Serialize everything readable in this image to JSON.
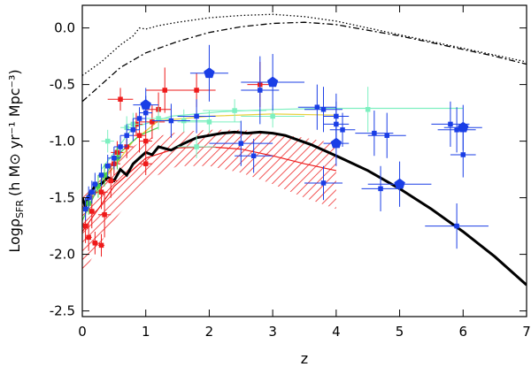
{
  "chart_data": {
    "type": "scatter",
    "title": "",
    "xlabel": "z",
    "ylabel": "LogρSFR (h M⊙ yr⁻¹ Mpc⁻³)",
    "ylabel_parts": {
      "prefix": "Logρ",
      "sub": "SFR",
      "units": "(h M⊙ yr⁻¹ Mpc⁻³)"
    },
    "xlim": [
      0,
      7
    ],
    "ylim": [
      -2.55,
      0.2
    ],
    "x_ticks": [
      0,
      1,
      2,
      3,
      4,
      5,
      6,
      7
    ],
    "x_tick_labels": [
      "0",
      "1",
      "2",
      "3",
      "4",
      "5",
      "6",
      "7"
    ],
    "y_ticks": [
      0.0,
      -0.5,
      -1.0,
      -1.5,
      -2.0,
      -2.5
    ],
    "y_tick_labels": [
      "0.0",
      "-0.5",
      "-1.0",
      "-1.5",
      "-2.0",
      "-2.5"
    ],
    "colors": {
      "blue": "#1a3ee6",
      "red": "#ee1a1a",
      "aqua": "#7df0c0",
      "yellow": "#e8d040",
      "green": "#4ad24a",
      "model": "#000000",
      "hatch": "#ee2a2a"
    },
    "series": [
      {
        "name": "model (solid)",
        "style": "solid",
        "x": [
          0,
          0.05,
          0.1,
          0.2,
          0.3,
          0.4,
          0.5,
          0.6,
          0.7,
          0.8,
          0.9,
          1.0,
          1.1,
          1.2,
          1.4,
          1.6,
          1.8,
          2.0,
          2.2,
          2.4,
          2.6,
          2.8,
          3.0,
          3.2,
          3.4,
          3.6,
          3.8,
          4.0,
          4.5,
          5.0,
          5.5,
          6.0,
          6.5,
          7.0
        ],
        "y": [
          -1.5,
          -1.58,
          -1.48,
          -1.4,
          -1.38,
          -1.32,
          -1.35,
          -1.25,
          -1.3,
          -1.2,
          -1.15,
          -1.1,
          -1.12,
          -1.05,
          -1.08,
          -1.02,
          -0.97,
          -0.95,
          -0.93,
          -0.92,
          -0.93,
          -0.92,
          -0.93,
          -0.95,
          -0.99,
          -1.03,
          -1.08,
          -1.13,
          -1.26,
          -1.42,
          -1.6,
          -1.8,
          -2.02,
          -2.27
        ]
      },
      {
        "name": "dotted",
        "style": "dotted",
        "x": [
          0,
          0.3,
          0.6,
          0.8,
          0.9,
          1.0,
          1.2,
          1.5,
          2.0,
          2.5,
          3.0,
          3.5,
          4.0,
          4.5,
          5.0,
          5.5,
          6.0,
          6.5,
          7.0
        ],
        "y": [
          -0.42,
          -0.3,
          -0.15,
          -0.07,
          0.0,
          -0.01,
          0.02,
          0.05,
          0.09,
          0.11,
          0.12,
          0.1,
          0.06,
          0.0,
          -0.06,
          -0.12,
          -0.18,
          -0.24,
          -0.3
        ]
      },
      {
        "name": "dash-dot",
        "style": "dashdot",
        "x": [
          0,
          0.3,
          0.6,
          1.0,
          1.5,
          2.0,
          2.5,
          3.0,
          3.5,
          4.0,
          4.5,
          5.0,
          5.5,
          6.0,
          6.5,
          7.0
        ],
        "y": [
          -0.65,
          -0.5,
          -0.35,
          -0.22,
          -0.12,
          -0.04,
          0.01,
          0.04,
          0.05,
          0.03,
          -0.02,
          -0.07,
          -0.13,
          -0.19,
          -0.25,
          -0.32
        ]
      },
      {
        "name": "red line",
        "style": "thin",
        "x": [
          0,
          0.5,
          1.0,
          1.5,
          2.0,
          2.5,
          3.0,
          3.5,
          4.0
        ],
        "y": [
          -1.8,
          -1.4,
          -1.15,
          -1.06,
          -1.05,
          -1.07,
          -1.13,
          -1.2,
          -1.26
        ]
      },
      {
        "name": "hatched band",
        "style": "band",
        "x": [
          0.0,
          0.5,
          1.0,
          1.5,
          2.0,
          2.5,
          3.0,
          3.5,
          4.0
        ],
        "upper": [
          -1.5,
          -1.15,
          -0.98,
          -0.92,
          -0.9,
          -0.9,
          -0.93,
          -0.97,
          -1.02
        ],
        "lower": [
          -2.18,
          -1.7,
          -1.35,
          -1.22,
          -1.22,
          -1.28,
          -1.38,
          -1.5,
          -1.6
        ]
      },
      {
        "name": "yellow line",
        "style": "thin",
        "x": [
          0,
          0.4,
          0.8,
          1.2,
          2.0,
          3.0,
          4.0
        ],
        "y": [
          -1.6,
          -1.3,
          -1.0,
          -0.82,
          -0.78,
          -0.76,
          -0.77
        ]
      },
      {
        "name": "aqua line",
        "style": "thin",
        "x": [
          0.3,
          0.8,
          1.4,
          2.2,
          3.0,
          3.8,
          4.5,
          5.2,
          6.0
        ],
        "y": [
          -1.25,
          -0.88,
          -0.78,
          -0.74,
          -0.72,
          -0.71,
          -0.71,
          -0.71,
          -0.71
        ]
      },
      {
        "name": "green line",
        "style": "thin",
        "x": [
          0,
          0.3,
          0.6,
          0.9,
          1.2
        ],
        "y": [
          -1.7,
          -1.35,
          -1.1,
          -0.95,
          -0.88
        ]
      }
    ],
    "points": [
      {
        "group": "red",
        "x": 0.05,
        "y": -1.75,
        "xerr": 0.05,
        "yerr": 0.15
      },
      {
        "group": "red",
        "x": 0.1,
        "y": -1.85,
        "xerr": 0.05,
        "yerr": 0.12
      },
      {
        "group": "red",
        "x": 0.15,
        "y": -1.62,
        "xerr": 0.05,
        "yerr": 0.15
      },
      {
        "group": "red",
        "x": 0.2,
        "y": -1.9,
        "xerr": 0.05,
        "yerr": 0.1
      },
      {
        "group": "red",
        "x": 0.3,
        "y": -1.92,
        "xerr": 0.05,
        "yerr": 0.1
      },
      {
        "group": "red",
        "x": 0.3,
        "y": -1.45,
        "xerr": 0.1,
        "yerr": 0.15
      },
      {
        "group": "red",
        "x": 0.35,
        "y": -1.65,
        "xerr": 0.1,
        "yerr": 0.2
      },
      {
        "group": "red",
        "x": 0.45,
        "y": -1.35,
        "xerr": 0.1,
        "yerr": 0.15
      },
      {
        "group": "red",
        "x": 0.55,
        "y": -1.1,
        "xerr": 0.1,
        "yerr": 0.1
      },
      {
        "group": "red",
        "x": 0.7,
        "y": -1.05,
        "xerr": 0.1,
        "yerr": 0.1
      },
      {
        "group": "red",
        "x": 0.85,
        "y": -0.85,
        "xerr": 0.1,
        "yerr": 0.1
      },
      {
        "group": "red",
        "x": 0.9,
        "y": -0.95,
        "xerr": 0.1,
        "yerr": 0.15
      },
      {
        "group": "red",
        "x": 1.0,
        "y": -1.2,
        "xerr": 0.1,
        "yerr": 0.1
      },
      {
        "group": "red",
        "x": 1.1,
        "y": -0.83,
        "xerr": 0.2,
        "yerr": 0.15
      },
      {
        "group": "red",
        "x": 1.2,
        "y": -0.72,
        "xerr": 0.2,
        "yerr": 0.15
      },
      {
        "group": "red",
        "x": 1.3,
        "y": -0.55,
        "xerr": 0.3,
        "yerr": 0.2
      },
      {
        "group": "red",
        "x": 0.6,
        "y": -0.63,
        "xerr": 0.2,
        "yerr": 0.1
      },
      {
        "group": "red",
        "x": 1.8,
        "y": -0.55,
        "xerr": 0.3,
        "yerr": 0.15
      },
      {
        "group": "red",
        "x": 2.8,
        "y": -0.5,
        "xerr": 0.2,
        "yerr": 0.2
      },
      {
        "group": "red",
        "x": 1.0,
        "y": -1.0,
        "xerr": 0.1,
        "yerr": 0.1
      },
      {
        "group": "red",
        "x": 0.5,
        "y": -1.2,
        "xerr": 0.1,
        "yerr": 0.1
      },
      {
        "group": "green",
        "x": 0.1,
        "y": -1.55,
        "xerr": 0.05,
        "yerr": 0.1
      },
      {
        "group": "green",
        "x": 0.25,
        "y": -1.4,
        "xerr": 0.05,
        "yerr": 0.1
      },
      {
        "group": "green",
        "x": 0.35,
        "y": -1.3,
        "xerr": 0.05,
        "yerr": 0.1
      },
      {
        "group": "green",
        "x": 0.55,
        "y": -1.15,
        "xerr": 0.05,
        "yerr": 0.1
      },
      {
        "group": "aqua",
        "x": 0.4,
        "y": -1.0,
        "xerr": 0.1,
        "yerr": 0.1
      },
      {
        "group": "aqua",
        "x": 0.7,
        "y": -0.88,
        "xerr": 0.1,
        "yerr": 0.1
      },
      {
        "group": "aqua",
        "x": 0.8,
        "y": -0.85,
        "xerr": 0.1,
        "yerr": 0.1
      },
      {
        "group": "aqua",
        "x": 1.2,
        "y": -0.8,
        "xerr": 0.2,
        "yerr": 0.1
      },
      {
        "group": "aqua",
        "x": 1.6,
        "y": -0.82,
        "xerr": 0.4,
        "yerr": 0.1
      },
      {
        "group": "aqua",
        "x": 2.0,
        "y": -0.83,
        "xerr": 0.5,
        "yerr": 0.1
      },
      {
        "group": "aqua",
        "x": 2.4,
        "y": -0.73,
        "xerr": 0.5,
        "yerr": 0.1
      },
      {
        "group": "aqua",
        "x": 3.0,
        "y": -0.78,
        "xerr": 0.5,
        "yerr": 0.1
      },
      {
        "group": "aqua",
        "x": 4.5,
        "y": -0.72,
        "xerr": 0.0,
        "yerr": 0.2
      },
      {
        "group": "aqua",
        "x": 1.8,
        "y": -1.05,
        "xerr": 0.3,
        "yerr": 0.1
      },
      {
        "group": "blue",
        "x": 0.05,
        "y": -1.6,
        "xerr": 0.03,
        "yerr": 0.1
      },
      {
        "group": "blue",
        "x": 0.1,
        "y": -1.5,
        "xerr": 0.03,
        "yerr": 0.1
      },
      {
        "group": "blue",
        "x": 0.15,
        "y": -1.45,
        "xerr": 0.05,
        "yerr": 0.1
      },
      {
        "group": "blue",
        "x": 0.2,
        "y": -1.38,
        "xerr": 0.05,
        "yerr": 0.1
      },
      {
        "group": "blue",
        "x": 0.3,
        "y": -1.3,
        "xerr": 0.05,
        "yerr": 0.1
      },
      {
        "group": "blue",
        "x": 0.4,
        "y": -1.22,
        "xerr": 0.05,
        "yerr": 0.1
      },
      {
        "group": "blue",
        "x": 0.5,
        "y": -1.15,
        "xerr": 0.1,
        "yerr": 0.1
      },
      {
        "group": "blue",
        "x": 0.6,
        "y": -1.05,
        "xerr": 0.1,
        "yerr": 0.1
      },
      {
        "group": "blue",
        "x": 0.7,
        "y": -0.95,
        "xerr": 0.1,
        "yerr": 0.1
      },
      {
        "group": "blue",
        "x": 0.8,
        "y": -0.9,
        "xerr": 0.1,
        "yerr": 0.1
      },
      {
        "group": "blue",
        "x": 0.9,
        "y": -0.8,
        "xerr": 0.1,
        "yerr": 0.1
      },
      {
        "group": "blue",
        "x": 1.0,
        "y": -0.75,
        "xerr": 0.1,
        "yerr": 0.15
      },
      {
        "group": "blue",
        "x": 1.4,
        "y": -0.82,
        "xerr": 0.3,
        "yerr": 0.15
      },
      {
        "group": "blue",
        "x": 1.8,
        "y": -0.78,
        "xerr": 0.3,
        "yerr": 0.15
      },
      {
        "group": "blue",
        "x": 2.5,
        "y": -1.02,
        "xerr": 0.5,
        "yerr": 0.2
      },
      {
        "group": "blue",
        "x": 2.8,
        "y": -0.55,
        "xerr": 0.3,
        "yerr": 0.3
      },
      {
        "group": "blue",
        "x": 3.8,
        "y": -0.72,
        "xerr": 0.3,
        "yerr": 0.2
      },
      {
        "group": "blue",
        "x": 4.0,
        "y": -0.78,
        "xerr": 0.2,
        "yerr": 0.2
      },
      {
        "group": "blue",
        "x": 4.0,
        "y": -0.85,
        "xerr": 0.2,
        "yerr": 0.2
      },
      {
        "group": "blue",
        "x": 4.1,
        "y": -0.9,
        "xerr": 0.2,
        "yerr": 0.15
      },
      {
        "group": "blue",
        "x": 4.6,
        "y": -0.93,
        "xerr": 0.3,
        "yerr": 0.2
      },
      {
        "group": "blue",
        "x": 4.8,
        "y": -0.95,
        "xerr": 0.3,
        "yerr": 0.2
      },
      {
        "group": "blue",
        "x": 4.7,
        "y": -1.42,
        "xerr": 0.3,
        "yerr": 0.2
      },
      {
        "group": "blue",
        "x": 3.8,
        "y": -1.37,
        "xerr": 0.3,
        "yerr": 0.15
      },
      {
        "group": "blue",
        "x": 2.7,
        "y": -1.13,
        "xerr": 0.3,
        "yerr": 0.15
      },
      {
        "group": "blue",
        "x": 5.8,
        "y": -0.85,
        "xerr": 0.3,
        "yerr": 0.2
      },
      {
        "group": "blue",
        "x": 5.9,
        "y": -0.9,
        "xerr": 0.3,
        "yerr": 0.2
      },
      {
        "group": "blue",
        "x": 6.0,
        "y": -1.12,
        "xerr": 0.2,
        "yerr": 0.2
      },
      {
        "group": "blue",
        "x": 5.9,
        "y": -1.75,
        "xerr": 0.5,
        "yerr": 0.2
      },
      {
        "group": "blue",
        "x": 3.7,
        "y": -0.7,
        "xerr": 0.3,
        "yerr": 0.2
      },
      {
        "group": "blue-big",
        "x": 1.0,
        "y": -0.68,
        "xerr": 0.2,
        "yerr": 0.15
      },
      {
        "group": "blue-big",
        "x": 2.0,
        "y": -0.4,
        "xerr": 0.3,
        "yerr": 0.25
      },
      {
        "group": "blue-big",
        "x": 3.0,
        "y": -0.48,
        "xerr": 0.5,
        "yerr": 0.25
      },
      {
        "group": "blue-big",
        "x": 4.0,
        "y": -1.02,
        "xerr": 0.2,
        "yerr": 0.2
      },
      {
        "group": "blue-big",
        "x": 5.0,
        "y": -1.38,
        "xerr": 0.5,
        "yerr": 0.2
      },
      {
        "group": "blue-big",
        "x": 6.0,
        "y": -0.88,
        "xerr": 0.3,
        "yerr": 0.2
      }
    ]
  }
}
